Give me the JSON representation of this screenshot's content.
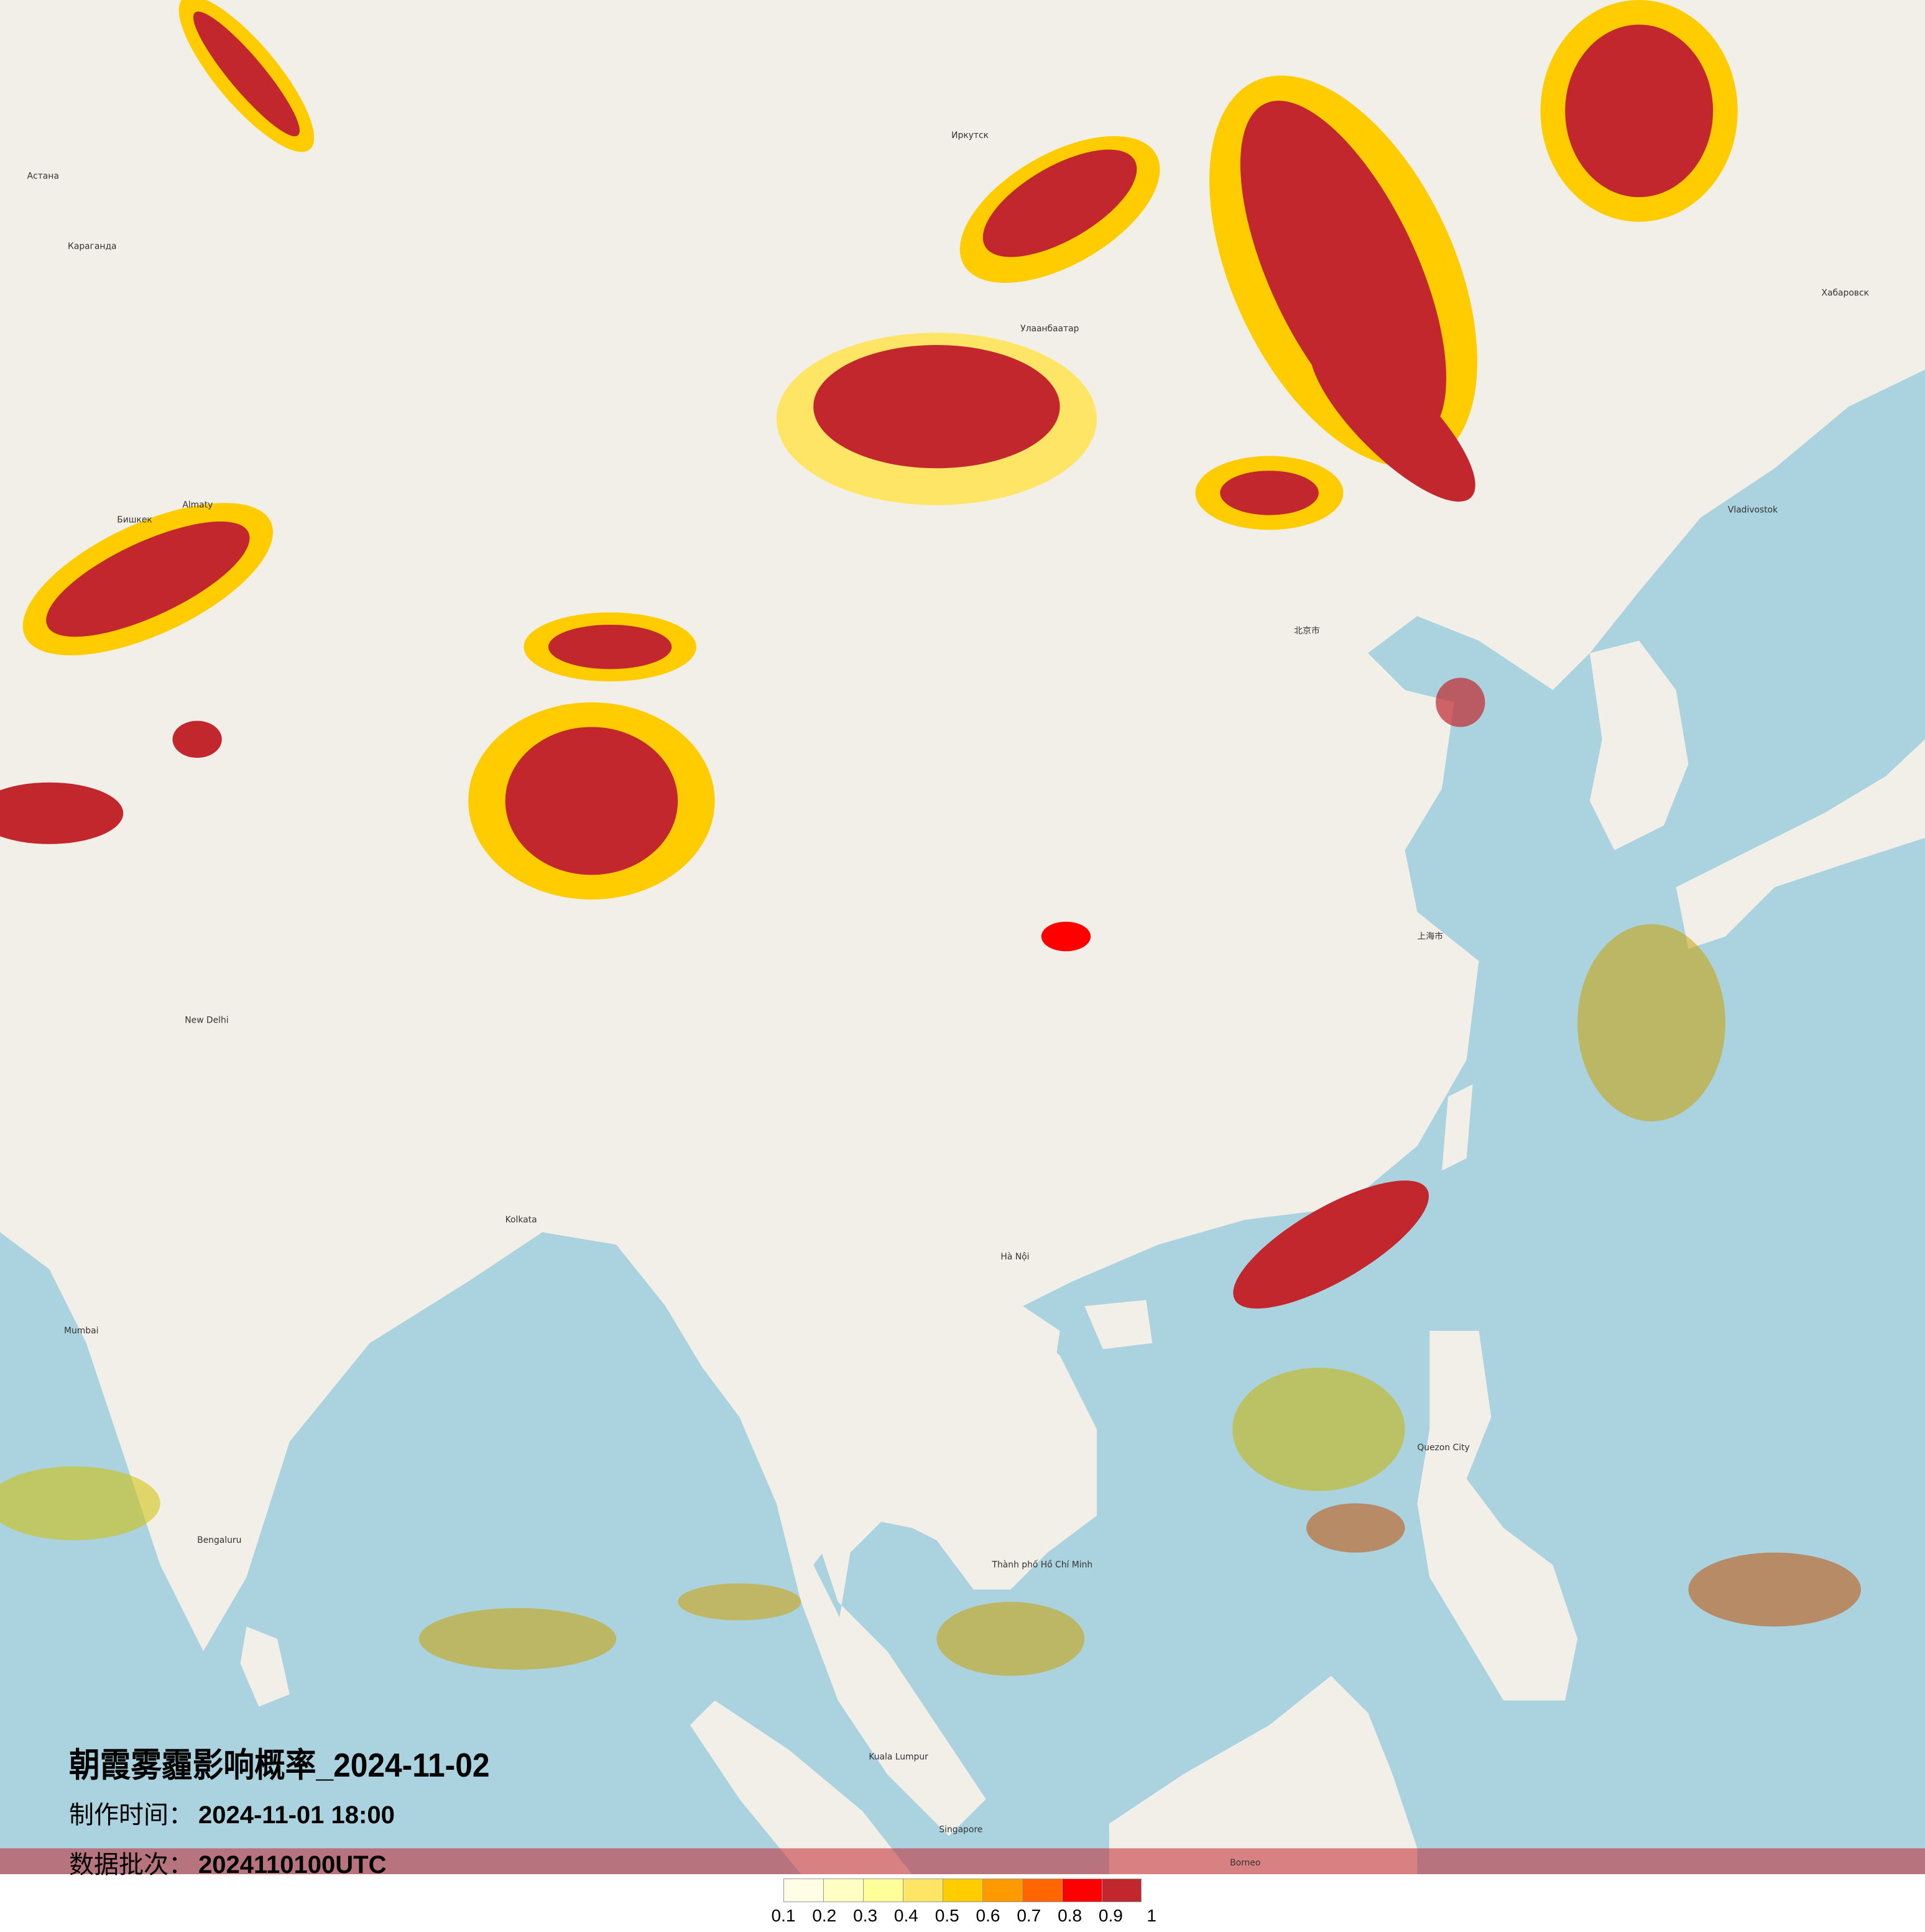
{
  "title": "朝霞雾霾影响概率_2024-11-02",
  "production_time_label": "制作时间：",
  "production_time": "2024-11-01 18:00",
  "data_batch_label": "数据批次：",
  "data_batch": "2024110100UTC",
  "legend": {
    "colors": [
      "#fffde6",
      "#ffffc4",
      "#ffff99",
      "#ffe566",
      "#ffcc00",
      "#ff9900",
      "#ff6600",
      "#ff0000",
      "#c1272d"
    ],
    "labels": [
      "0.1",
      "0.2",
      "0.3",
      "0.4",
      "0.5",
      "0.6",
      "0.7",
      "0.8",
      "0.9",
      "1"
    ]
  },
  "map": {
    "land_color": "#f2efe9",
    "sea_color": "#aad3df",
    "places": [
      {
        "name": "Астана"
      },
      {
        "name": "Караганда"
      },
      {
        "name": "Иркутск"
      },
      {
        "name": "Улаанбаатар"
      },
      {
        "name": "Хабаровск"
      },
      {
        "name": "Vladivostok"
      },
      {
        "name": "Almaty"
      },
      {
        "name": "Бишкек"
      },
      {
        "name": "New Delhi"
      },
      {
        "name": "Mumbai"
      },
      {
        "name": "Bengaluru"
      },
      {
        "name": "Kolkata"
      },
      {
        "name": "北京市"
      },
      {
        "name": "上海市"
      },
      {
        "name": "Hà Nội"
      },
      {
        "name": "Thành phố Hồ Chí Minh"
      },
      {
        "name": "Kuala Lumpur"
      },
      {
        "name": "Singapore"
      },
      {
        "name": "Quezon City"
      },
      {
        "name": "Borneo"
      }
    ]
  }
}
